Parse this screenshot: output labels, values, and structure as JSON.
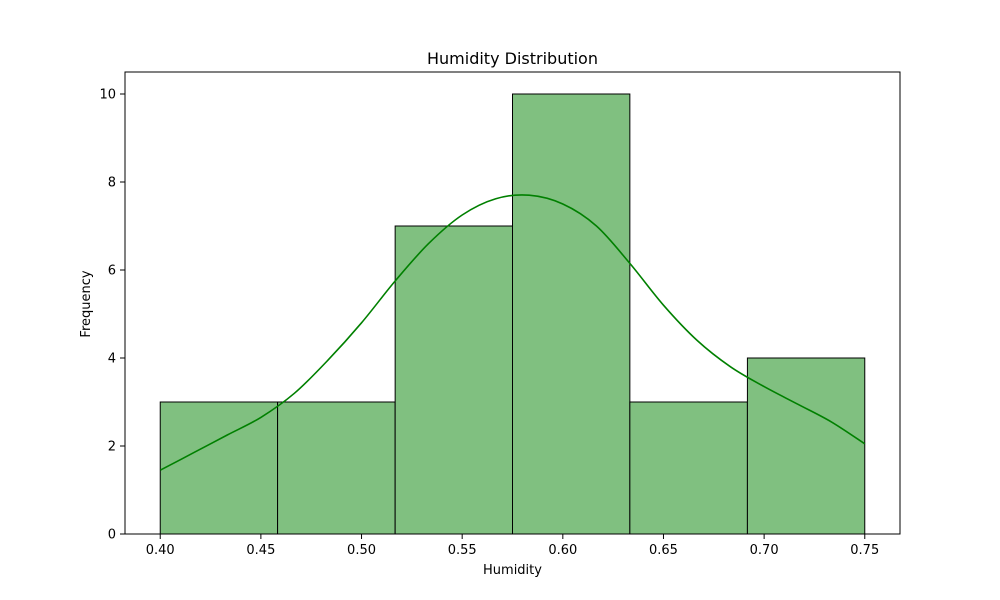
{
  "chart_data": {
    "type": "bar",
    "title": "Humidity Distribution",
    "xlabel": "Humidity",
    "ylabel": "Frequency",
    "bins": [
      {
        "start": 0.4,
        "end": 0.4583,
        "count": 3
      },
      {
        "start": 0.4583,
        "end": 0.5167,
        "count": 3
      },
      {
        "start": 0.5167,
        "end": 0.575,
        "count": 7
      },
      {
        "start": 0.575,
        "end": 0.6333,
        "count": 10
      },
      {
        "start": 0.6333,
        "end": 0.6917,
        "count": 3
      },
      {
        "start": 0.6917,
        "end": 0.75,
        "count": 4
      }
    ],
    "kde": {
      "x": [
        0.4,
        0.4167,
        0.4333,
        0.45,
        0.4667,
        0.4833,
        0.5,
        0.5167,
        0.5333,
        0.55,
        0.5667,
        0.5833,
        0.6,
        0.6167,
        0.6333,
        0.65,
        0.6667,
        0.6833,
        0.7,
        0.7167,
        0.7333,
        0.75
      ],
      "y": [
        1.45,
        1.85,
        2.25,
        2.65,
        3.2,
        3.95,
        4.8,
        5.75,
        6.6,
        7.25,
        7.62,
        7.7,
        7.5,
        7.0,
        6.15,
        5.2,
        4.4,
        3.8,
        3.35,
        2.95,
        2.55,
        2.05
      ]
    },
    "xlim": [
      0.3825,
      0.7675
    ],
    "ylim": [
      0,
      10.5
    ],
    "xticks": [
      "0.40",
      "0.45",
      "0.50",
      "0.55",
      "0.60",
      "0.65",
      "0.70",
      "0.75"
    ],
    "xtick_values": [
      0.4,
      0.45,
      0.5,
      0.55,
      0.6,
      0.65,
      0.7,
      0.75
    ],
    "yticks": [
      "0",
      "2",
      "4",
      "6",
      "8",
      "10"
    ],
    "ytick_values": [
      0,
      2,
      4,
      6,
      8,
      10
    ],
    "grid": false,
    "colors": {
      "bar_fill": "#80c080",
      "bar_edge": "#000000",
      "kde_line": "#008000"
    }
  }
}
